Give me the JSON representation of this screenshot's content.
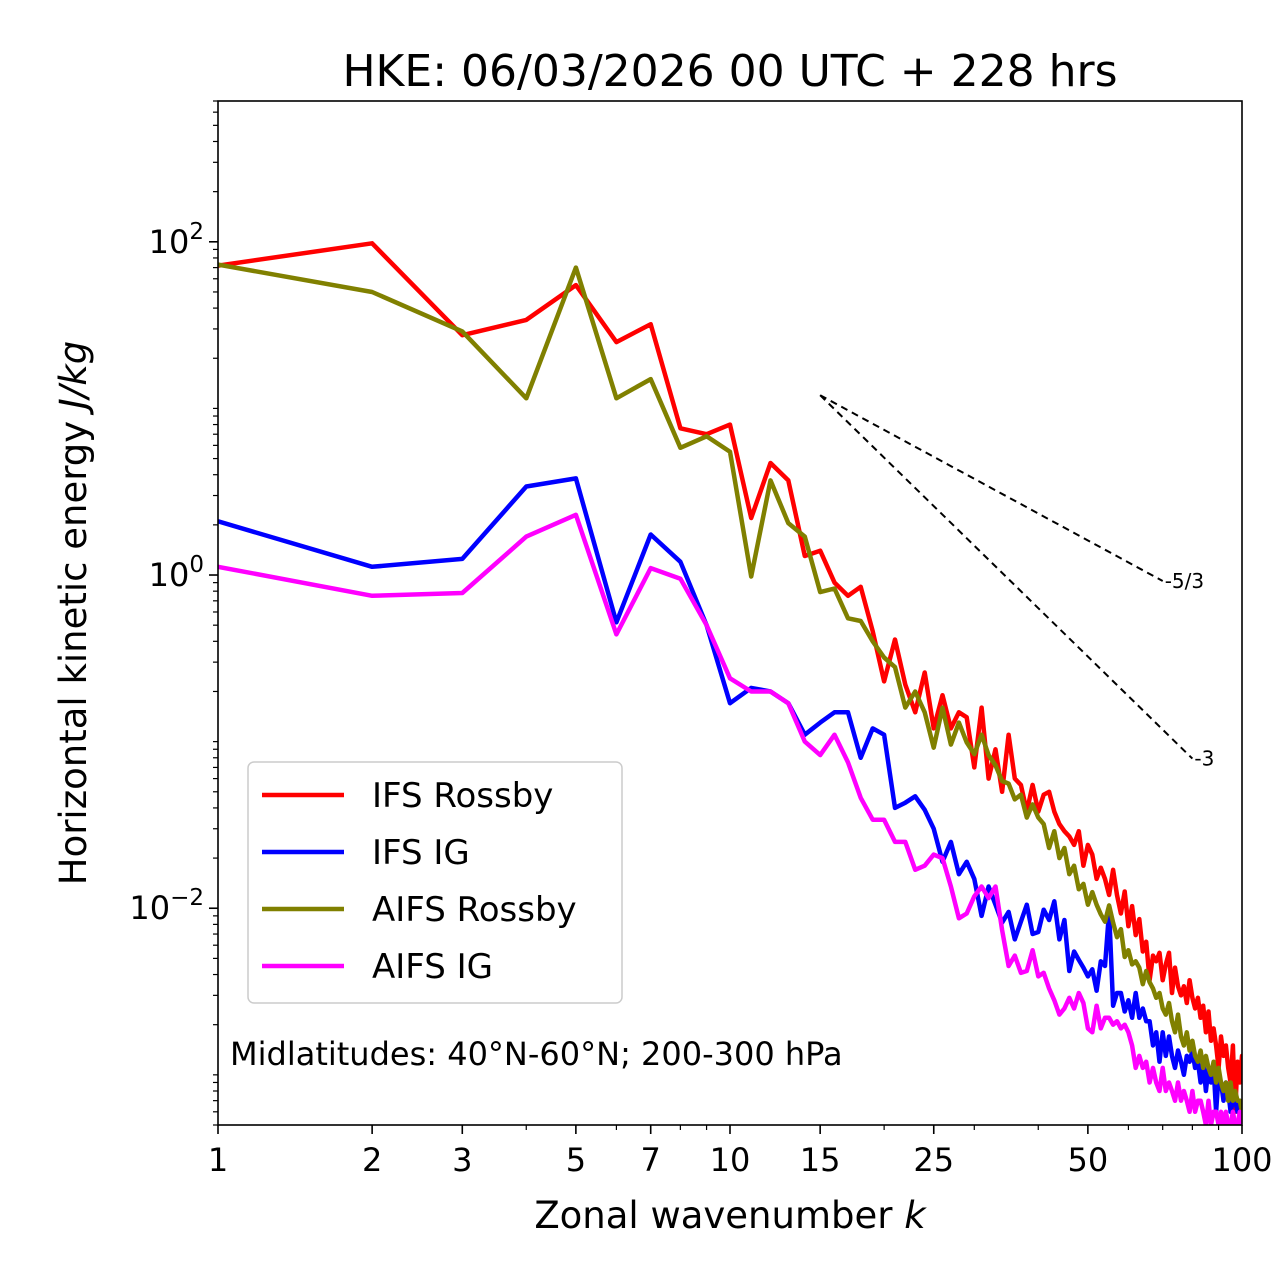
{
  "chart_data": {
    "type": "line",
    "title": "HKE: 06/03/2026 00 UTC + 228 hrs",
    "xlabel_text": "Zonal wavenumber ",
    "xlabel_var": "k",
    "ylabel_text": "Horizontal kinetic energy ",
    "ylabel_units": "J/kg",
    "xscale": "log",
    "yscale": "log",
    "xlim": [
      1,
      100
    ],
    "ylim": [
      0.0005,
      700
    ],
    "x_ticks": [
      1,
      2,
      3,
      5,
      7,
      10,
      15,
      25,
      50,
      100
    ],
    "x_tick_labels": [
      "1",
      "2",
      "3",
      "5",
      "7",
      "10",
      "15",
      "25",
      "50",
      "100"
    ],
    "y_ticks": [
      100,
      1,
      0.01
    ],
    "y_tick_labels": [
      {
        "base": "10",
        "exp": "2"
      },
      {
        "base": "10",
        "exp": "0"
      },
      {
        "base": "10",
        "exp": "−2"
      }
    ],
    "annotation": "Midlatitudes: 40°N-60°N; 200-300 hPa",
    "legend_position": "lower-left",
    "reference_slopes": [
      {
        "label": "-5/3",
        "slope": -1.6667,
        "k_start": 15,
        "k_end": 70,
        "e_start": 12
      },
      {
        "label": "-3",
        "slope": -3,
        "k_start": 15,
        "k_end": 80,
        "e_start": 12
      }
    ],
    "series": [
      {
        "name": "IFS Rossby",
        "color": "#ff0000",
        "x": [
          1,
          2,
          3,
          4,
          5,
          6,
          7,
          8,
          9,
          10,
          11,
          12,
          13,
          14,
          15,
          16,
          17,
          18,
          19,
          20,
          21,
          22,
          23,
          24,
          25,
          26,
          27,
          28,
          29,
          30,
          31,
          32,
          33,
          34,
          35,
          36,
          37,
          38,
          39,
          40,
          41,
          42,
          43,
          44,
          45,
          46,
          47,
          48,
          49,
          50,
          51,
          52,
          53,
          54,
          55,
          56,
          57,
          58,
          59,
          60,
          61,
          62,
          63,
          64,
          65,
          66,
          67,
          68,
          69,
          70,
          71,
          72,
          73,
          74,
          75,
          76,
          77,
          78,
          79,
          80,
          81,
          82,
          83,
          84,
          85,
          86,
          87,
          88,
          89,
          90,
          91,
          92,
          93,
          94,
          95,
          96,
          97,
          98,
          99,
          100
        ],
        "y": [
          72,
          98,
          27.5,
          34,
          55,
          25,
          32,
          7.6,
          7.0,
          8.0,
          2.2,
          4.7,
          3.7,
          1.3,
          1.4,
          0.9,
          0.75,
          0.85,
          0.46,
          0.23,
          0.41,
          0.22,
          0.15,
          0.26,
          0.12,
          0.19,
          0.12,
          0.15,
          0.14,
          0.07,
          0.16,
          0.06,
          0.09,
          0.05,
          0.11,
          0.06,
          0.055,
          0.038,
          0.055,
          0.038,
          0.048,
          0.05,
          0.038,
          0.032,
          0.029,
          0.027,
          0.024,
          0.029,
          0.018,
          0.024,
          0.021,
          0.015,
          0.0175,
          0.015,
          0.012,
          0.017,
          0.012,
          0.0093,
          0.0126,
          0.0078,
          0.0103,
          0.0069,
          0.0086,
          0.0055,
          0.0063,
          0.0037,
          0.0052,
          0.0048,
          0.0054,
          0.0037,
          0.0046,
          0.0054,
          0.0031,
          0.0044,
          0.0034,
          0.003,
          0.0034,
          0.0027,
          0.0037,
          0.0029,
          0.0025,
          0.0029,
          0.0022,
          0.0026,
          0.0018,
          0.0024,
          0.0016,
          0.0019,
          0.0015,
          0.0011,
          0.0017,
          0.0013,
          0.0015,
          0.0011,
          0.0009,
          0.0015,
          0.0006,
          0.0012,
          0.0009,
          0.0013
        ]
      },
      {
        "name": "IFS IG",
        "color": "#0000ff",
        "x": [
          1,
          2,
          3,
          4,
          5,
          6,
          7,
          8,
          9,
          10,
          11,
          12,
          13,
          14,
          15,
          16,
          17,
          18,
          19,
          20,
          21,
          22,
          23,
          24,
          25,
          26,
          27,
          28,
          29,
          30,
          31,
          32,
          33,
          34,
          35,
          36,
          37,
          38,
          39,
          40,
          41,
          42,
          43,
          44,
          45,
          46,
          47,
          48,
          49,
          50,
          51,
          52,
          53,
          54,
          55,
          56,
          57,
          58,
          59,
          60,
          61,
          62,
          63,
          64,
          65,
          66,
          67,
          68,
          69,
          70,
          71,
          72,
          73,
          74,
          75,
          76,
          77,
          78,
          79,
          80,
          81,
          82,
          83,
          84,
          85,
          86,
          87,
          88,
          89,
          90,
          91,
          92,
          93,
          94,
          95,
          96,
          97,
          98,
          99,
          100
        ],
        "y": [
          2.1,
          1.12,
          1.25,
          3.4,
          3.8,
          0.52,
          1.75,
          1.2,
          0.5,
          0.17,
          0.21,
          0.2,
          0.17,
          0.11,
          0.13,
          0.15,
          0.15,
          0.08,
          0.12,
          0.11,
          0.04,
          0.043,
          0.047,
          0.039,
          0.03,
          0.019,
          0.025,
          0.016,
          0.019,
          0.015,
          0.009,
          0.0135,
          0.0105,
          0.0082,
          0.0095,
          0.0065,
          0.0083,
          0.0105,
          0.007,
          0.0072,
          0.0098,
          0.0085,
          0.011,
          0.0065,
          0.0085,
          0.0042,
          0.0055,
          0.0049,
          0.0044,
          0.0039,
          0.0043,
          0.0032,
          0.0048,
          0.0045,
          0.0096,
          0.0026,
          0.0031,
          0.0031,
          0.0024,
          0.0028,
          0.0022,
          0.0031,
          0.0022,
          0.0025,
          0.0021,
          0.0021,
          0.0015,
          0.0018,
          0.0012,
          0.0018,
          0.0013,
          0.0017,
          0.0013,
          0.0011,
          0.0014,
          0.0012,
          0.001,
          0.0013,
          0.0012,
          0.0014,
          0.0011,
          0.0012,
          0.0009,
          0.0012,
          0.0008,
          0.0011,
          0.0009,
          0.0011,
          0.0006,
          0.001,
          0.0009,
          0.0007,
          0.0009,
          0.0008,
          0.0006,
          0.0007,
          0.0007,
          0.0006,
          0.0007,
          0.0005
        ]
      },
      {
        "name": "AIFS Rossby",
        "color": "#808000",
        "x": [
          1,
          2,
          3,
          4,
          5,
          6,
          7,
          8,
          9,
          10,
          11,
          12,
          13,
          14,
          15,
          16,
          17,
          18,
          19,
          20,
          21,
          22,
          23,
          24,
          25,
          26,
          27,
          28,
          29,
          30,
          31,
          32,
          33,
          34,
          35,
          36,
          37,
          38,
          39,
          40,
          41,
          42,
          43,
          44,
          45,
          46,
          47,
          48,
          49,
          50,
          51,
          52,
          53,
          54,
          55,
          56,
          57,
          58,
          59,
          60,
          61,
          62,
          63,
          64,
          65,
          66,
          67,
          68,
          69,
          70,
          71,
          72,
          73,
          74,
          75,
          76,
          77,
          78,
          79,
          80,
          81,
          82,
          83,
          84,
          85,
          86,
          87,
          88,
          89,
          90,
          91,
          92,
          93,
          94,
          95,
          96,
          97,
          98,
          99,
          100
        ],
        "y": [
          73,
          50,
          29,
          11.5,
          70,
          11.5,
          15,
          5.8,
          6.8,
          5.5,
          0.98,
          3.7,
          2.05,
          1.7,
          0.79,
          0.83,
          0.55,
          0.53,
          0.4,
          0.32,
          0.28,
          0.16,
          0.2,
          0.15,
          0.092,
          0.16,
          0.096,
          0.13,
          0.099,
          0.084,
          0.11,
          0.083,
          0.072,
          0.058,
          0.056,
          0.045,
          0.048,
          0.035,
          0.042,
          0.035,
          0.032,
          0.023,
          0.029,
          0.02,
          0.023,
          0.016,
          0.018,
          0.013,
          0.014,
          0.0105,
          0.0125,
          0.0105,
          0.0092,
          0.0083,
          0.0104,
          0.0082,
          0.0067,
          0.0075,
          0.0051,
          0.0056,
          0.0046,
          0.0048,
          0.0044,
          0.0035,
          0.0042,
          0.0036,
          0.0033,
          0.0029,
          0.0031,
          0.0025,
          0.0023,
          0.0027,
          0.0021,
          0.0018,
          0.0023,
          0.0017,
          0.0015,
          0.0018,
          0.0014,
          0.0016,
          0.0013,
          0.0012,
          0.0014,
          0.0011,
          0.0013,
          0.0011,
          0.001,
          0.0012,
          0.0009,
          0.0011,
          0.0009,
          0.0008,
          0.0009,
          0.0007,
          0.0009,
          0.0007,
          0.0008,
          0.0007,
          0.0007,
          0.0006
        ]
      },
      {
        "name": "AIFS IG",
        "color": "#ff00ff",
        "x": [
          1,
          2,
          3,
          4,
          5,
          6,
          7,
          8,
          9,
          10,
          11,
          12,
          13,
          14,
          15,
          16,
          17,
          18,
          19,
          20,
          21,
          22,
          23,
          24,
          25,
          26,
          27,
          28,
          29,
          30,
          31,
          32,
          33,
          34,
          35,
          36,
          37,
          38,
          39,
          40,
          41,
          42,
          43,
          44,
          45,
          46,
          47,
          48,
          49,
          50,
          51,
          52,
          53,
          54,
          55,
          56,
          57,
          58,
          59,
          60,
          61,
          62,
          63,
          64,
          65,
          66,
          67,
          68,
          69,
          70,
          71,
          72,
          73,
          74,
          75,
          76,
          77,
          78,
          79,
          80,
          81,
          82,
          83,
          84,
          85,
          86,
          87,
          88,
          89,
          90,
          91,
          92,
          93,
          94,
          95,
          96,
          97,
          98,
          99,
          100
        ],
        "y": [
          1.12,
          0.75,
          0.78,
          1.7,
          2.3,
          0.44,
          1.1,
          0.95,
          0.5,
          0.24,
          0.2,
          0.2,
          0.17,
          0.1,
          0.083,
          0.11,
          0.075,
          0.046,
          0.034,
          0.034,
          0.025,
          0.025,
          0.017,
          0.018,
          0.021,
          0.02,
          0.0135,
          0.0087,
          0.0093,
          0.0118,
          0.0135,
          0.0115,
          0.0135,
          0.0074,
          0.0045,
          0.0052,
          0.0041,
          0.0042,
          0.0056,
          0.0039,
          0.0041,
          0.0033,
          0.0028,
          0.0023,
          0.0025,
          0.0029,
          0.0025,
          0.0031,
          0.0027,
          0.0019,
          0.0018,
          0.0026,
          0.0019,
          0.0022,
          0.0022,
          0.002,
          0.0021,
          0.0019,
          0.002,
          0.0018,
          0.0015,
          0.0011,
          0.0013,
          0.0011,
          0.0012,
          0.0009,
          0.0011,
          0.0009,
          0.0008,
          0.0011,
          0.0008,
          0.0009,
          0.0008,
          0.0007,
          0.0009,
          0.0007,
          0.0008,
          0.0007,
          0.0006,
          0.0008,
          0.0006,
          0.0007,
          0.0007,
          0.0006,
          0.0005,
          0.0007,
          0.0005,
          0.0006,
          0.0006,
          0.0005,
          0.0006,
          0.0005,
          0.0006,
          0.0005,
          0.0005,
          0.0006,
          0.0005,
          0.0005,
          0.0006,
          0.0005
        ]
      }
    ]
  }
}
